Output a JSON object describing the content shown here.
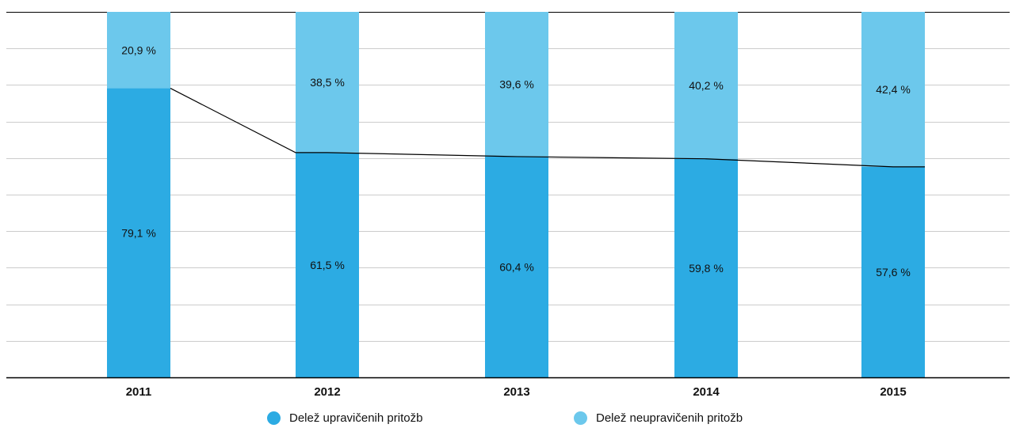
{
  "chart_data": {
    "type": "bar",
    "stacked": true,
    "categories": [
      "2011",
      "2012",
      "2013",
      "2014",
      "2015"
    ],
    "series": [
      {
        "name": "Delež upravičenih pritožb",
        "values": [
          79.1,
          61.5,
          60.4,
          59.8,
          57.6
        ],
        "labels": [
          "79,1 %",
          "61,5 %",
          "60,4 %",
          "59,8 %",
          "57,6 %"
        ],
        "color": "#2cabe3"
      },
      {
        "name": "Delež neupravičenih pritožb",
        "values": [
          20.9,
          38.5,
          39.6,
          40.2,
          42.4
        ],
        "labels": [
          "20,9 %",
          "38,5 %",
          "39,6 %",
          "40,2 %",
          "42,4 %"
        ],
        "color": "#6cc8ec"
      }
    ],
    "trend_line": {
      "series": "Delež upravičenih pritožb",
      "color": "#000000"
    },
    "ylim": [
      0,
      100
    ],
    "grid": true,
    "legend_position": "bottom",
    "gridline_color": "#cccccc",
    "axis_color": "#000000"
  }
}
